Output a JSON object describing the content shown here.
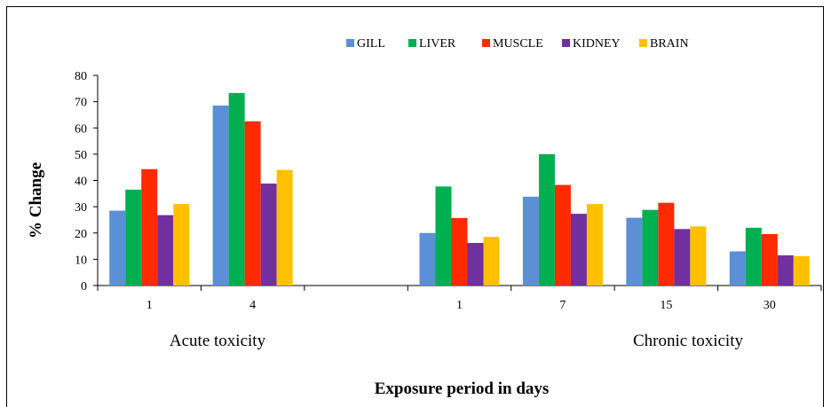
{
  "chart_data": {
    "type": "bar",
    "categories": [
      "1",
      "4",
      "",
      "1",
      "7",
      "15",
      "30"
    ],
    "series": [
      {
        "name": "GILL",
        "color": "#5b8fd6",
        "values": [
          28.5,
          68.5,
          null,
          20,
          33.8,
          25.8,
          13
        ]
      },
      {
        "name": "LIVER",
        "color": "#00b050",
        "values": [
          36.5,
          73.3,
          null,
          37.7,
          50,
          28.8,
          22
        ]
      },
      {
        "name": "MUSCLE",
        "color": "#ff2a00",
        "values": [
          44.3,
          62.5,
          null,
          25.7,
          38.3,
          31.5,
          19.6
        ]
      },
      {
        "name": "KIDNEY",
        "color": "#7030a0",
        "values": [
          26.8,
          38.8,
          null,
          16.2,
          27.3,
          21.5,
          11.5
        ]
      },
      {
        "name": "BRAIN",
        "color": "#ffc000",
        "values": [
          31,
          44,
          null,
          18.5,
          31,
          22.5,
          11.2
        ]
      }
    ],
    "group_labels": [
      "Acute toxicity",
      "Chronic toxicity"
    ],
    "xlabel": "Exposure period in days",
    "ylabel": "% Change",
    "ylim": [
      0,
      80
    ],
    "yticks": [
      "0",
      "10",
      "20",
      "30",
      "40",
      "50",
      "60",
      "70",
      "80"
    ],
    "legend_position": "top",
    "grid": false
  }
}
